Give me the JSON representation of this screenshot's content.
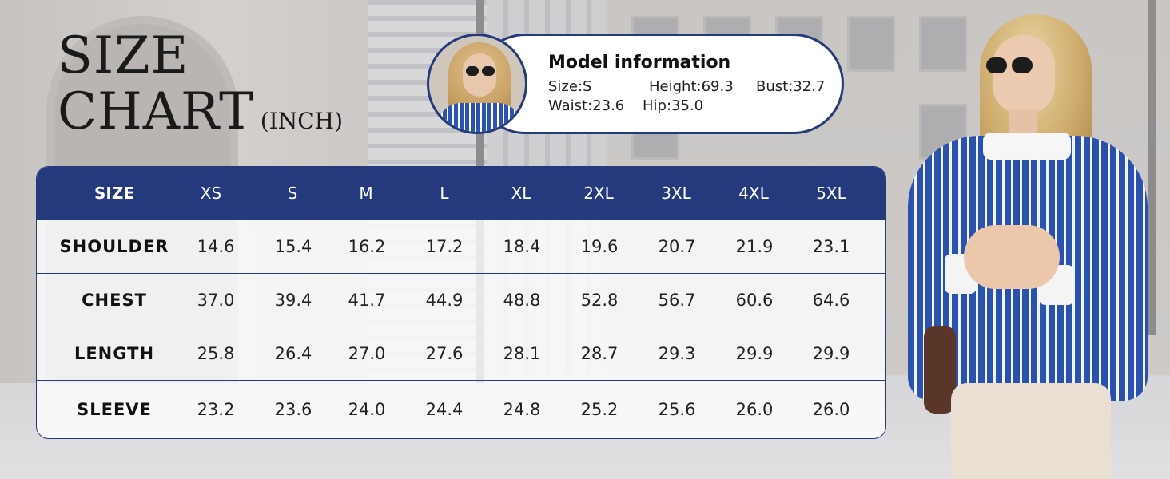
{
  "title": {
    "line1": "SIZE",
    "line2": "CHART",
    "unit": "(INCH)"
  },
  "model": {
    "heading": "Model information",
    "size": "Size:S",
    "height": "Height:69.3",
    "bust": "Bust:32.7",
    "waist": "Waist:23.6",
    "hip": "Hip:35.0"
  },
  "colors": {
    "header_bg": "#253a7c",
    "accent_border": "#253a7c",
    "shirt_blue": "#2a52ad"
  },
  "table": {
    "header_label": "SIZE",
    "sizes": [
      "XS",
      "S",
      "M",
      "L",
      "XL",
      "2XL",
      "3XL",
      "4XL",
      "5XL"
    ],
    "rows": [
      {
        "label": "SHOULDER",
        "values": [
          "14.6",
          "15.4",
          "16.2",
          "17.2",
          "18.4",
          "19.6",
          "20.7",
          "21.9",
          "23.1"
        ]
      },
      {
        "label": "CHEST",
        "values": [
          "37.0",
          "39.4",
          "41.7",
          "44.9",
          "48.8",
          "52.8",
          "56.7",
          "60.6",
          "64.6"
        ]
      },
      {
        "label": "LENGTH",
        "values": [
          "25.8",
          "26.4",
          "27.0",
          "27.6",
          "28.1",
          "28.7",
          "29.3",
          "29.9",
          "29.9"
        ]
      },
      {
        "label": "SLEEVE",
        "values": [
          "23.2",
          "23.6",
          "24.0",
          "24.4",
          "24.8",
          "25.2",
          "25.6",
          "26.0",
          "26.0"
        ]
      }
    ]
  }
}
